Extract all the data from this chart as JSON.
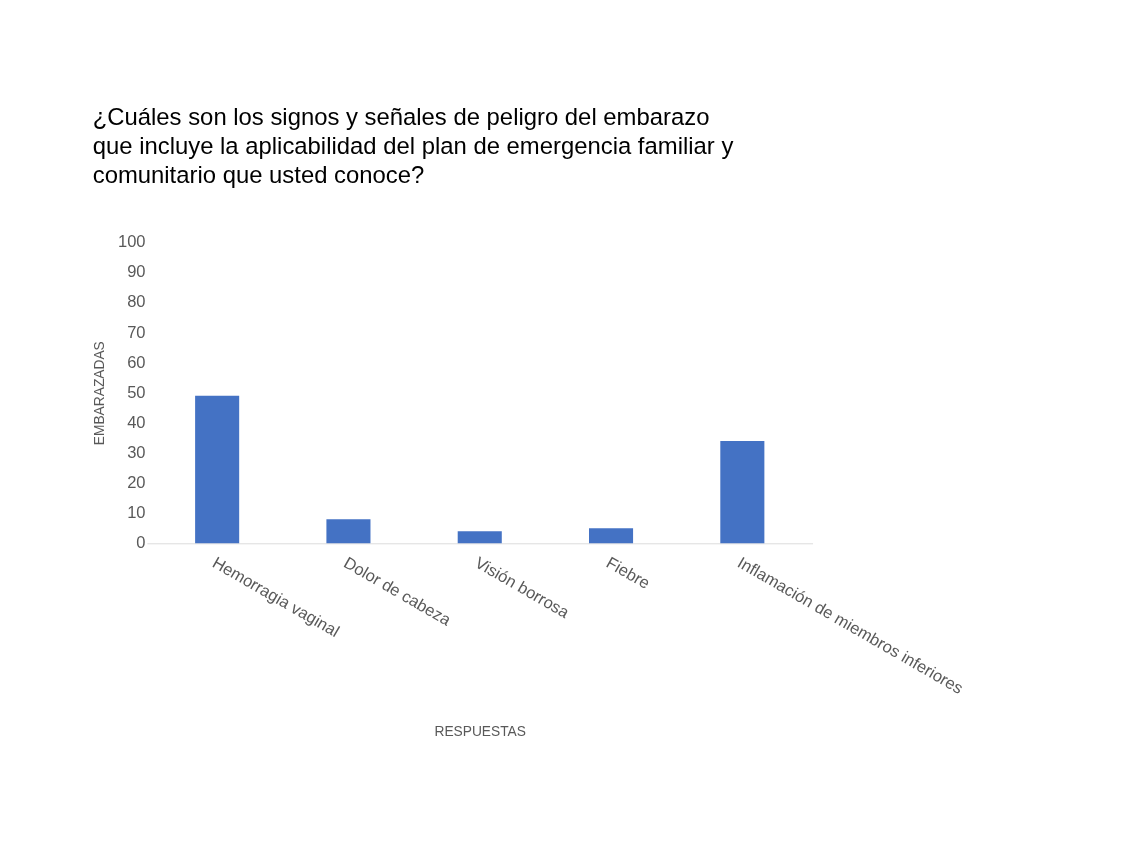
{
  "chart_data": {
    "type": "bar",
    "title": [
      "¿Cuáles son los signos y señales de peligro del embarazo",
      "que incluye la aplicabilidad del plan de emergencia familiar y",
      "comunitario que usted conoce?"
    ],
    "xlabel": "RESPUESTAS",
    "ylabel": "EMBARAZADAS",
    "categories": [
      "Hemorragia vaginal",
      "Dolor de cabeza",
      "Visión borrosa",
      "Fiebre",
      "Inflamación de miembros inferiores"
    ],
    "values": [
      49,
      8,
      4,
      5,
      34
    ],
    "color": "#4472c4",
    "ylim": [
      0,
      100
    ],
    "yticks": [
      0,
      10,
      20,
      30,
      40,
      50,
      60,
      70,
      80,
      90,
      100
    ],
    "grid": false
  }
}
